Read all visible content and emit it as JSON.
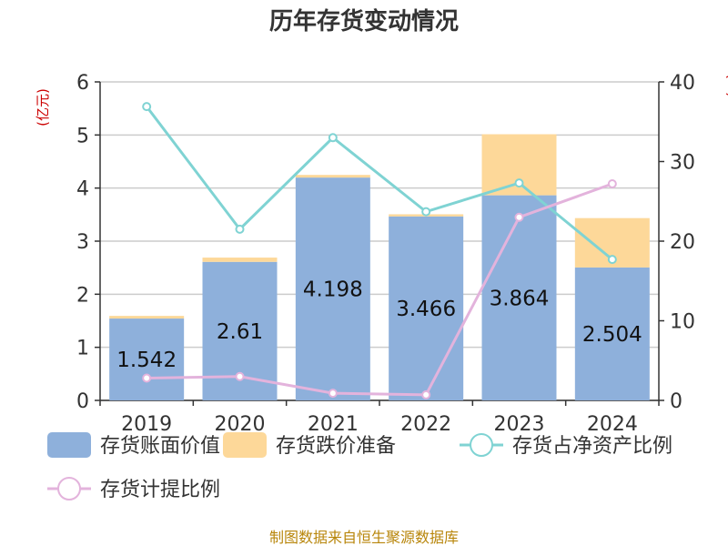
{
  "chart_data": {
    "type": "bar",
    "title": "历年存货变动情况",
    "y_left_unit": "(亿元)",
    "y_right_unit": "(%)",
    "source": "制图数据来自恒生聚源数据库",
    "categories": [
      "2019",
      "2020",
      "2021",
      "2022",
      "2023",
      "2024"
    ],
    "y_left_lim": [
      0,
      6
    ],
    "y_left_ticks": [
      "0",
      "1",
      "2",
      "3",
      "4",
      "5",
      "6"
    ],
    "y_right_lim": [
      0,
      40
    ],
    "y_right_ticks": [
      "0",
      "10",
      "20",
      "30",
      "40"
    ],
    "grid": true,
    "legend_position": "bottom",
    "bar_series": [
      {
        "name": "存货账面价值",
        "color": "#8eb0db",
        "values": [
          1.542,
          2.61,
          4.198,
          3.466,
          3.864,
          2.504
        ],
        "labels": [
          "1.542",
          "2.61",
          "4.198",
          "3.466",
          "3.864",
          "2.504"
        ]
      },
      {
        "name": "存货跌价准备",
        "color": "#fdd899",
        "values": [
          0.05,
          0.08,
          0.05,
          0.04,
          1.15,
          0.93
        ]
      }
    ],
    "line_series": [
      {
        "name": "存货占净资产比例",
        "color": "#7fd3d3",
        "values": [
          36.9,
          21.5,
          33.0,
          23.7,
          27.3,
          17.7
        ]
      },
      {
        "name": "存货计提比例",
        "color": "#e3b3dc",
        "values": [
          2.8,
          3.0,
          0.9,
          0.7,
          23.0,
          27.2
        ]
      }
    ]
  }
}
